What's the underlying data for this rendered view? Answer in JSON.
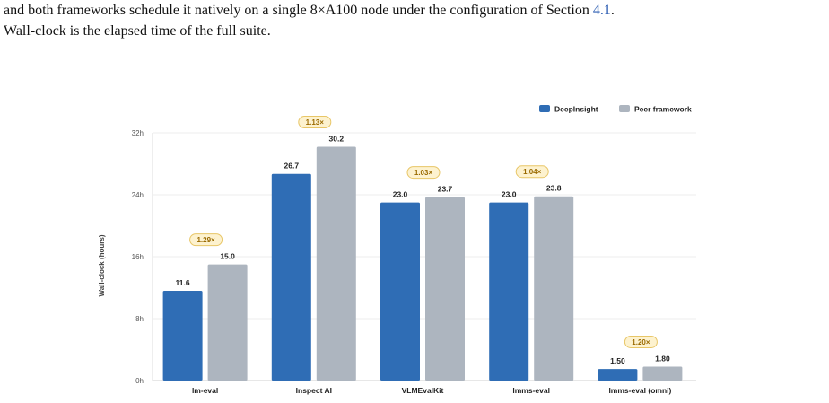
{
  "caption": {
    "line1_a": "and both frameworks schedule it natively on a single 8×A100 node under the configuration of Section ",
    "line1_ref": "4.1",
    "line1_b": ".",
    "line2": "Wall-clock is the elapsed time of the full suite."
  },
  "chart_data": {
    "type": "bar",
    "categories": [
      "lm-eval",
      "Inspect AI",
      "VLMEvalKit",
      "lmms-eval",
      "lmms-eval (omni)"
    ],
    "series": [
      {
        "name": "DeepInsight",
        "values": [
          11.6,
          26.7,
          23.0,
          23.0,
          1.5
        ],
        "labels": [
          "11.6",
          "26.7",
          "23.0",
          "23.0",
          "1.50"
        ],
        "color": "#2f6db5"
      },
      {
        "name": "Peer framework",
        "values": [
          15.0,
          30.2,
          23.7,
          23.8,
          1.8
        ],
        "labels": [
          "15.0",
          "30.2",
          "23.7",
          "23.8",
          "1.80"
        ],
        "color": "#adb5bf"
      }
    ],
    "speedups": [
      "1.29×",
      "1.13×",
      "1.03×",
      "1.04×",
      "1.20×"
    ],
    "ylabel": "Wall-clock (hours)",
    "xlabel": "",
    "ylim": [
      0,
      32
    ],
    "yticks": [
      0,
      8,
      16,
      24,
      32
    ],
    "ytick_labels": [
      "0h",
      "8h",
      "16h",
      "24h",
      "32h"
    ],
    "grid": true,
    "legend": "top-right",
    "badge_fill": "#fdf2cf",
    "badge_stroke": "#e8c667"
  }
}
